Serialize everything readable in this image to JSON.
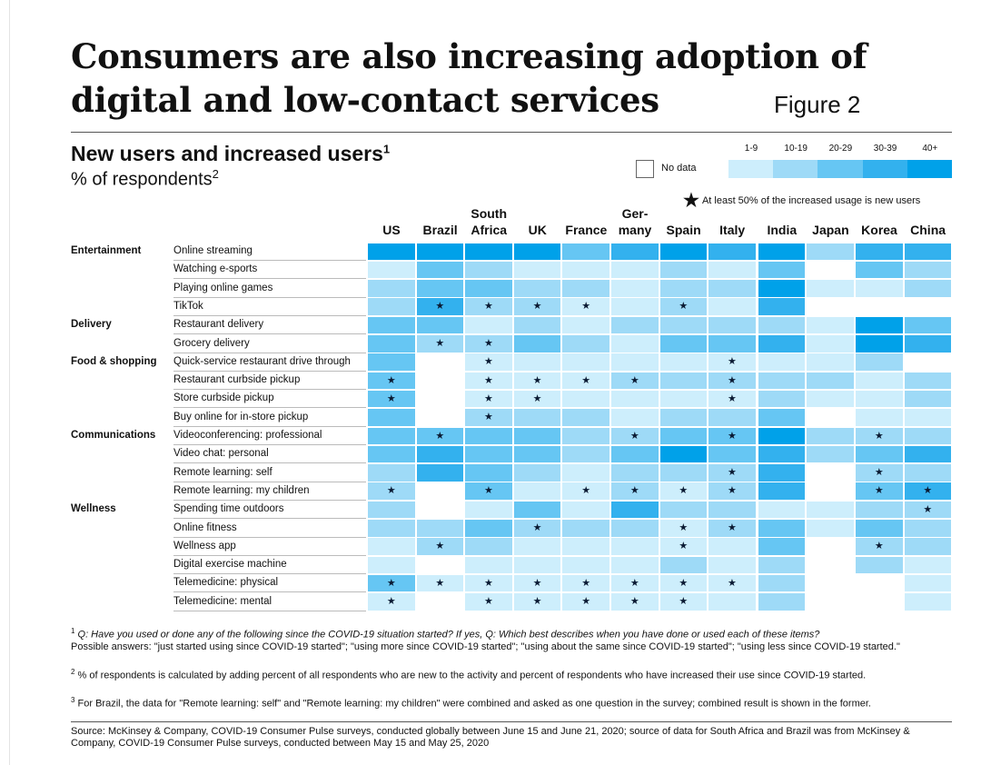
{
  "title": "Consumers are also increasing adoption of digital and low-contact services",
  "title_lines": [
    "Consumers are also increasing adoption of",
    "digital and low-contact services"
  ],
  "figure_label": "Figure 2",
  "subtitle": "New users and increased users",
  "subtitle_sup": "1",
  "subtitle2": "% of respondents",
  "subtitle2_sup": "2",
  "chart_data": {
    "type": "heatmap",
    "title": "New users and increased users",
    "legend": {
      "bins": [
        "1-9",
        "10-19",
        "20-29",
        "30-39",
        "40+"
      ],
      "colors": [
        "#cdeefc",
        "#9edaf7",
        "#66c6f3",
        "#33b1ee",
        "#00a1e9"
      ],
      "no_data_label": "No data",
      "no_data_color": "#ffffff",
      "star_label": "At least 50% of the increased usage is new users",
      "placement": "top-right"
    },
    "columns": [
      {
        "label": [
          "",
          "US"
        ]
      },
      {
        "label": [
          "",
          "Brazil"
        ]
      },
      {
        "label": [
          "South",
          "Africa"
        ]
      },
      {
        "label": [
          "",
          "UK"
        ]
      },
      {
        "label": [
          "",
          "France"
        ]
      },
      {
        "label": [
          "Ger-",
          "many"
        ]
      },
      {
        "label": [
          "",
          "Spain"
        ]
      },
      {
        "label": [
          "",
          "Italy"
        ]
      },
      {
        "label": [
          "",
          "India"
        ]
      },
      {
        "label": [
          "",
          "Japan"
        ]
      },
      {
        "label": [
          "",
          "Korea"
        ]
      },
      {
        "label": [
          "",
          "China"
        ]
      }
    ],
    "value_encoding": "0 = No data, 1 = 1-9, 2 = 10-19, 3 = 20-29, 4 = 30-39, 5 = 40+",
    "rows": [
      {
        "category": "Entertainment",
        "item": "Online streaming",
        "values": [
          5,
          5,
          5,
          5,
          3,
          4,
          5,
          4,
          5,
          2,
          4,
          4
        ],
        "stars": [
          0,
          0,
          0,
          0,
          0,
          0,
          0,
          0,
          0,
          0,
          0,
          0
        ]
      },
      {
        "category": "",
        "item": "Watching e-sports",
        "values": [
          1,
          3,
          2,
          1,
          1,
          1,
          2,
          1,
          3,
          0,
          3,
          2
        ],
        "stars": [
          0,
          0,
          0,
          0,
          0,
          0,
          0,
          0,
          0,
          0,
          0,
          0
        ]
      },
      {
        "category": "",
        "item": "Playing online games",
        "values": [
          2,
          3,
          3,
          2,
          2,
          1,
          2,
          2,
          5,
          1,
          1,
          2
        ],
        "stars": [
          0,
          0,
          0,
          0,
          0,
          0,
          0,
          0,
          0,
          0,
          0,
          0
        ]
      },
      {
        "category": "",
        "item": "TikTok",
        "values": [
          2,
          4,
          2,
          2,
          1,
          1,
          2,
          1,
          4,
          0,
          0,
          0
        ],
        "stars": [
          0,
          1,
          1,
          1,
          1,
          0,
          1,
          0,
          0,
          0,
          0,
          0
        ]
      },
      {
        "category": "Delivery",
        "item": "Restaurant delivery",
        "values": [
          3,
          3,
          1,
          2,
          1,
          2,
          2,
          2,
          2,
          1,
          5,
          3
        ],
        "stars": [
          0,
          0,
          0,
          0,
          0,
          0,
          0,
          0,
          0,
          0,
          0,
          0
        ]
      },
      {
        "category": "",
        "item": "Grocery delivery",
        "values": [
          3,
          2,
          2,
          3,
          2,
          1,
          3,
          3,
          4,
          1,
          5,
          4
        ],
        "stars": [
          0,
          1,
          1,
          0,
          0,
          0,
          0,
          0,
          0,
          0,
          0,
          0
        ]
      },
      {
        "category": "Food & shopping",
        "item": "Quick-service restaurant drive through",
        "values": [
          3,
          0,
          1,
          1,
          1,
          1,
          1,
          1,
          1,
          1,
          2,
          0
        ],
        "stars": [
          0,
          0,
          1,
          0,
          0,
          0,
          0,
          1,
          0,
          0,
          0,
          0
        ]
      },
      {
        "category": "",
        "item": "Restaurant curbside pickup",
        "values": [
          3,
          0,
          1,
          1,
          1,
          2,
          2,
          2,
          2,
          2,
          1,
          2
        ],
        "stars": [
          1,
          0,
          1,
          1,
          1,
          1,
          0,
          1,
          0,
          0,
          0,
          0
        ]
      },
      {
        "category": "",
        "item": "Store curbside pickup",
        "values": [
          3,
          0,
          1,
          1,
          1,
          1,
          1,
          1,
          2,
          1,
          1,
          2
        ],
        "stars": [
          1,
          0,
          1,
          1,
          0,
          0,
          0,
          1,
          0,
          0,
          0,
          0
        ]
      },
      {
        "category": "",
        "item": "Buy online for in-store pickup",
        "values": [
          3,
          0,
          2,
          2,
          2,
          1,
          2,
          2,
          3,
          0,
          1,
          1
        ],
        "stars": [
          0,
          0,
          1,
          0,
          0,
          0,
          0,
          0,
          0,
          0,
          0,
          0
        ]
      },
      {
        "category": "Communications",
        "item": "Videoconferencing: professional",
        "values": [
          3,
          3,
          3,
          3,
          2,
          2,
          3,
          3,
          5,
          2,
          2,
          2
        ],
        "stars": [
          0,
          1,
          0,
          0,
          0,
          1,
          0,
          1,
          0,
          0,
          1,
          0
        ]
      },
      {
        "category": "",
        "item": "Video chat: personal",
        "values": [
          3,
          4,
          3,
          3,
          2,
          3,
          5,
          3,
          4,
          2,
          3,
          4
        ],
        "stars": [
          0,
          0,
          0,
          0,
          0,
          0,
          0,
          0,
          0,
          0,
          0,
          0
        ]
      },
      {
        "category": "",
        "item": "Remote learning: self",
        "values": [
          2,
          4,
          3,
          2,
          1,
          2,
          2,
          2,
          4,
          0,
          2,
          2
        ],
        "stars": [
          0,
          0,
          0,
          0,
          0,
          0,
          0,
          1,
          0,
          0,
          1,
          0
        ]
      },
      {
        "category": "",
        "item": "Remote learning: my children",
        "values": [
          2,
          0,
          3,
          1,
          1,
          2,
          1,
          2,
          4,
          0,
          3,
          4
        ],
        "stars": [
          1,
          0,
          1,
          0,
          1,
          1,
          1,
          1,
          0,
          0,
          1,
          1
        ]
      },
      {
        "category": "Wellness",
        "item": "Spending time outdoors",
        "values": [
          2,
          0,
          1,
          3,
          1,
          4,
          2,
          2,
          1,
          1,
          2,
          2
        ],
        "stars": [
          0,
          0,
          0,
          0,
          0,
          0,
          0,
          0,
          0,
          0,
          0,
          1
        ]
      },
      {
        "category": "",
        "item": "Online fitness",
        "values": [
          2,
          2,
          3,
          2,
          2,
          2,
          1,
          2,
          3,
          1,
          3,
          2
        ],
        "stars": [
          0,
          0,
          0,
          1,
          0,
          0,
          1,
          1,
          0,
          0,
          0,
          0
        ]
      },
      {
        "category": "",
        "item": "Wellness app",
        "values": [
          1,
          2,
          2,
          1,
          1,
          1,
          1,
          1,
          3,
          0,
          2,
          2
        ],
        "stars": [
          0,
          1,
          0,
          0,
          0,
          0,
          1,
          0,
          0,
          0,
          1,
          0
        ]
      },
      {
        "category": "",
        "item": "Digital exercise machine",
        "values": [
          1,
          0,
          1,
          1,
          1,
          1,
          2,
          1,
          2,
          0,
          2,
          1
        ],
        "stars": [
          0,
          0,
          0,
          0,
          0,
          0,
          0,
          0,
          0,
          0,
          0,
          0
        ]
      },
      {
        "category": "",
        "item": "Telemedicine: physical",
        "values": [
          3,
          1,
          1,
          1,
          1,
          1,
          1,
          1,
          2,
          0,
          0,
          1
        ],
        "stars": [
          1,
          1,
          1,
          1,
          1,
          1,
          1,
          1,
          0,
          0,
          0,
          0
        ]
      },
      {
        "category": "",
        "item": "Telemedicine: mental",
        "values": [
          1,
          0,
          1,
          1,
          1,
          1,
          1,
          1,
          2,
          0,
          0,
          1
        ],
        "stars": [
          1,
          0,
          1,
          1,
          1,
          1,
          1,
          0,
          0,
          0,
          0,
          0
        ]
      }
    ]
  },
  "footnotes": [
    {
      "sup": "1",
      "text": "Q: Have you used or done any of the following since the COVID-19 situation started? If yes, Q: Which best describes when you have done or used each of these items?",
      "text2": "Possible answers: \"just started using since COVID-19 started\"; \"using more since COVID-19 started\"; \"using about the same since COVID-19 started\"; \"using less since COVID-19 started.\""
    },
    {
      "sup": "2",
      "text": "% of respondents is calculated by adding percent of all respondents who are new to the activity and percent of respondents who have increased their use since COVID-19 started."
    },
    {
      "sup": "3",
      "text": "For Brazil, the data for \"Remote learning: self\" and \"Remote learning: my children\" were combined and asked as one question in the survey; combined result is shown in the former."
    }
  ],
  "source": "Source: McKinsey & Company, COVID-19 Consumer Pulse surveys, conducted globally between June 15 and June 21, 2020; source of data for South Africa and Brazil was from McKinsey & Company, COVID-19 Consumer Pulse surveys, conducted between May 15 and May 25, 2020"
}
